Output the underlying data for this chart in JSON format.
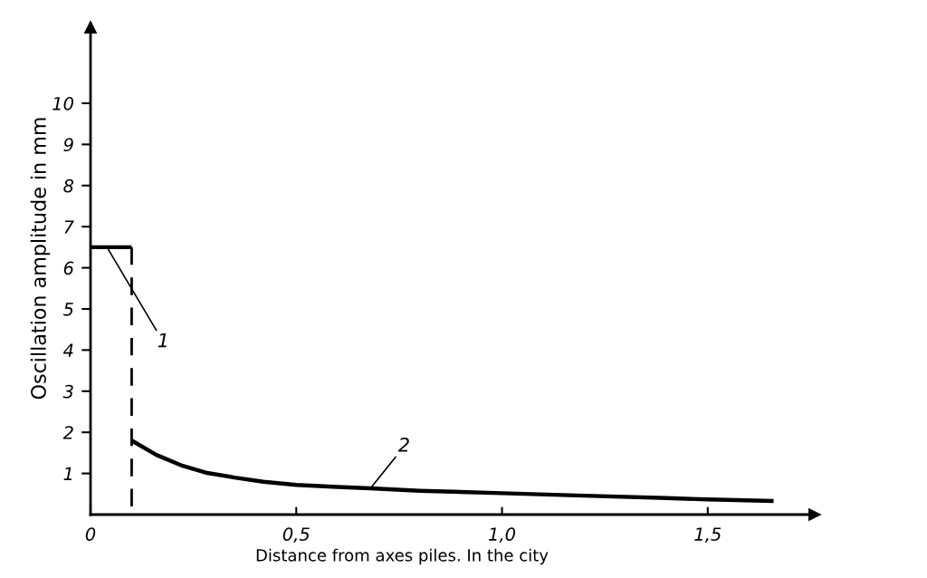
{
  "chart_data": {
    "type": "line",
    "xlabel": "Distance from axes piles. In the city",
    "ylabel": "Oscillation amplitude in mm",
    "xlim": [
      0,
      1.76
    ],
    "ylim": [
      0,
      11.85
    ],
    "xticks": [
      0,
      {
        "value": 0.5,
        "label": "0,5"
      },
      {
        "value": 1.0,
        "label": "1,0"
      },
      {
        "value": 1.5,
        "label": "1,5"
      }
    ],
    "yticks": [
      1,
      2,
      3,
      4,
      5,
      6,
      7,
      8,
      9,
      10
    ],
    "grid": false,
    "marker": "none",
    "line_style": "solid",
    "series": [
      {
        "name": "1",
        "color": "#000000",
        "x": [
          0,
          0.1
        ],
        "values": [
          6.5,
          6.5
        ]
      },
      {
        "color": "#000000",
        "x": [
          0.1,
          0.1
        ],
        "values": [
          6.5,
          0
        ],
        "line_style": "dashed"
      },
      {
        "name": "2",
        "color": "#000000",
        "x": [
          0.1,
          0.16,
          0.22,
          0.28,
          0.35,
          0.42,
          0.5,
          0.6,
          0.68,
          0.8,
          1.0,
          1.2,
          1.4,
          1.5,
          1.66
        ],
        "values": [
          1.8,
          1.45,
          1.2,
          1.02,
          0.9,
          0.8,
          0.72,
          0.67,
          0.64,
          0.58,
          0.52,
          0.46,
          0.4,
          0.37,
          0.33
        ]
      }
    ]
  }
}
